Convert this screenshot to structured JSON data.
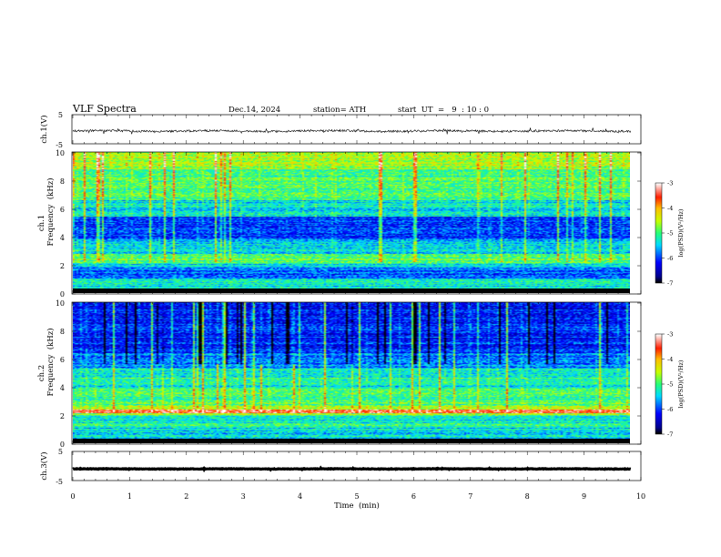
{
  "header": {
    "title": "VLF  Spectra",
    "date": "Dec.14, 2024",
    "station": "station= ATH",
    "start_ut": "start  UT  =   9  : 10 : 0"
  },
  "chart_data": [
    {
      "type": "line",
      "panel": "ch1-waveform",
      "ylabel": "ch.1(V)",
      "y_ticks": [
        "5",
        "-5"
      ],
      "ylim": [
        -5,
        5
      ],
      "xlim": [
        0,
        10
      ],
      "description_values": {
        "mean": -0.6,
        "noise_amplitude": 0.6,
        "x_end": 9.82
      }
    },
    {
      "type": "heatmap",
      "panel": "ch1-spectrogram",
      "ylabel_channel": "ch.1",
      "ylabel": "Frequency  (kHz)",
      "y_ticks": [
        "0",
        "2",
        "4",
        "6",
        "8",
        "10"
      ],
      "ylim": [
        0,
        10
      ],
      "xlim": [
        0,
        10
      ],
      "colorbar": {
        "label": "log(PSD)(V²/Hz)",
        "ticks": [
          "-3",
          "-4",
          "-5",
          "-6",
          "-7"
        ],
        "range": [
          -7,
          -3
        ]
      }
    },
    {
      "type": "heatmap",
      "panel": "ch2-spectrogram",
      "ylabel_channel": "ch.2",
      "ylabel": "Frequency  (kHz)",
      "y_ticks": [
        "0",
        "2",
        "4",
        "6",
        "8",
        "10"
      ],
      "ylim": [
        0,
        10
      ],
      "xlim": [
        0,
        10
      ],
      "colorbar": {
        "label": "log(PSD)(V²/Hz)",
        "ticks": [
          "-3",
          "-4",
          "-5",
          "-6",
          "-7"
        ],
        "range": [
          -7,
          -3
        ]
      }
    },
    {
      "type": "line",
      "panel": "ch3-waveform",
      "ylabel": "ch.3(V)",
      "y_ticks": [
        "5",
        "-5"
      ],
      "ylim": [
        -5,
        5
      ],
      "xlim": [
        0,
        10
      ],
      "description_values": {
        "mean": -1.0,
        "noise_amplitude": 0.15,
        "x_end": 9.82
      }
    }
  ],
  "x_axis": {
    "label": "Time  (min)",
    "ticks": [
      "0",
      "1",
      "2",
      "3",
      "4",
      "5",
      "6",
      "7",
      "8",
      "9",
      "10"
    ]
  }
}
